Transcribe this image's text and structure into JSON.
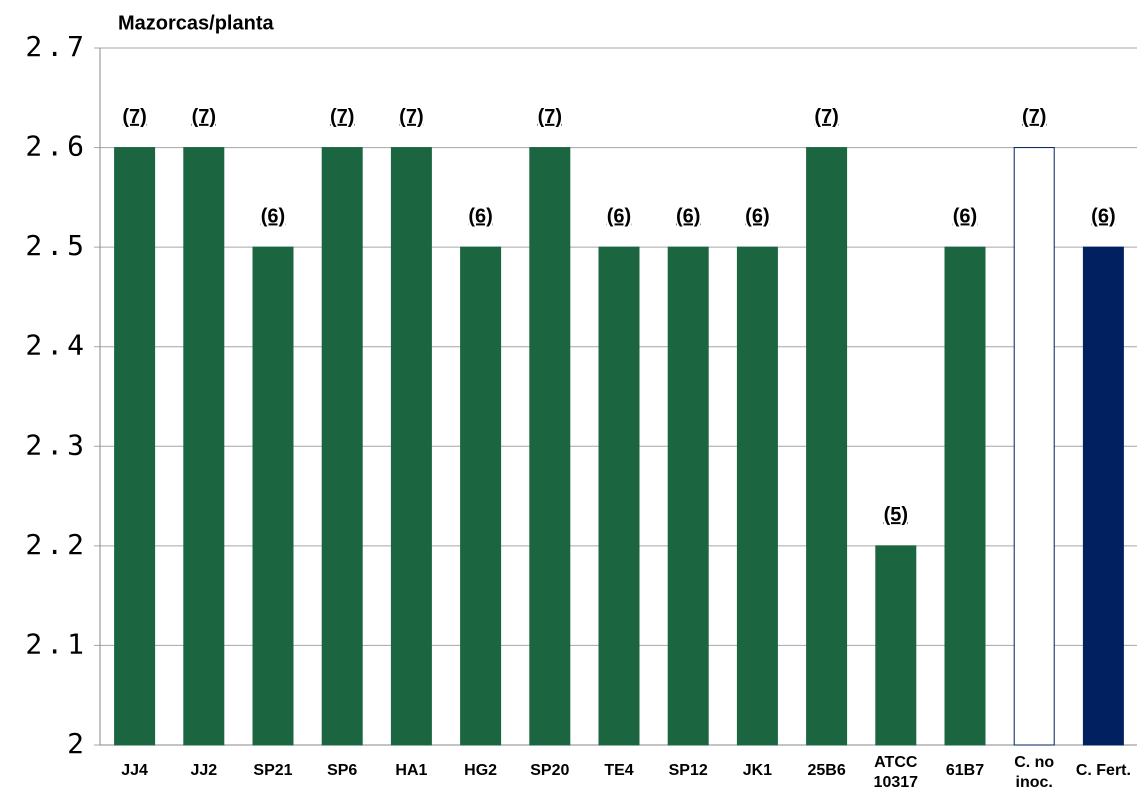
{
  "chart_data": {
    "type": "bar",
    "title": "Mazorcas/planta",
    "categories": [
      "JJ4",
      "JJ2",
      "SP21",
      "SP6",
      "HA1",
      "HG2",
      "SP20",
      "TE4",
      "SP12",
      "JK1",
      "25B6",
      "ATCC\n10317",
      "61B7",
      "C. no\ninoc.",
      "C. Fert."
    ],
    "values": [
      2.6,
      2.6,
      2.5,
      2.6,
      2.6,
      2.5,
      2.6,
      2.5,
      2.5,
      2.5,
      2.6,
      2.2,
      2.5,
      2.6,
      2.5
    ],
    "annotations": [
      "(7)",
      "(7)",
      "(6)",
      "(7)",
      "(7)",
      "(6)",
      "(7)",
      "(6)",
      "(6)",
      "(6)",
      "(7)",
      "(5)",
      "(6)",
      "(7)",
      "(6)"
    ],
    "colors": [
      "#1b6640",
      "#1b6640",
      "#1b6640",
      "#1b6640",
      "#1b6640",
      "#1b6640",
      "#1b6640",
      "#1b6640",
      "#1b6640",
      "#1b6640",
      "#1b6640",
      "#1b6640",
      "#1b6640",
      "#ffffff",
      "#00205f"
    ],
    "ylim": [
      2,
      2.7
    ],
    "yticks": [
      2,
      2.1,
      2.2,
      2.3,
      2.4,
      2.5,
      2.6,
      2.7
    ],
    "grid": true
  }
}
